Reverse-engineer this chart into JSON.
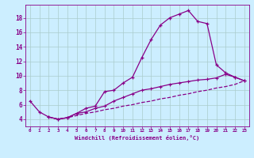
{
  "xlabel": "Windchill (Refroidissement éolien,°C)",
  "bg_color": "#cceeff",
  "line_color": "#880088",
  "grid_color": "#aacccc",
  "xlim": [
    -0.5,
    23.5
  ],
  "ylim": [
    3.0,
    19.8
  ],
  "xticks": [
    0,
    1,
    2,
    3,
    4,
    5,
    6,
    7,
    8,
    9,
    10,
    11,
    12,
    13,
    14,
    15,
    16,
    17,
    18,
    19,
    20,
    21,
    22,
    23
  ],
  "yticks": [
    4,
    6,
    8,
    10,
    12,
    14,
    16,
    18
  ],
  "line1_x": [
    0,
    1,
    2,
    3,
    4,
    5,
    6,
    7,
    8,
    9,
    10,
    11,
    12,
    13,
    14,
    15,
    16,
    17,
    18,
    19,
    20,
    21,
    22,
    23
  ],
  "line1_y": [
    6.5,
    5.0,
    4.3,
    4.0,
    4.2,
    4.8,
    5.5,
    5.8,
    7.8,
    8.0,
    9.0,
    9.8,
    12.5,
    15.0,
    17.0,
    18.0,
    18.5,
    19.0,
    17.5,
    17.2,
    11.5,
    10.4,
    9.8,
    9.3
  ],
  "line2_x": [
    2,
    3,
    4,
    5,
    6,
    7,
    8,
    9,
    10,
    11,
    12,
    13,
    14,
    15,
    16,
    17,
    18,
    19,
    20,
    21,
    22,
    23
  ],
  "line2_y": [
    4.3,
    4.0,
    4.2,
    4.8,
    5.0,
    5.5,
    5.8,
    6.5,
    7.0,
    7.5,
    8.0,
    8.2,
    8.5,
    8.8,
    9.0,
    9.2,
    9.4,
    9.5,
    9.7,
    10.2,
    9.8,
    9.3
  ],
  "line3_x": [
    2,
    3,
    4,
    5,
    6,
    7,
    8,
    9,
    10,
    11,
    12,
    13,
    14,
    15,
    16,
    17,
    18,
    19,
    20,
    21,
    22,
    23
  ],
  "line3_y": [
    4.3,
    4.0,
    4.2,
    4.5,
    4.8,
    5.0,
    5.3,
    5.5,
    5.8,
    6.0,
    6.3,
    6.5,
    6.8,
    7.0,
    7.3,
    7.5,
    7.8,
    8.0,
    8.3,
    8.5,
    8.8,
    9.3
  ]
}
